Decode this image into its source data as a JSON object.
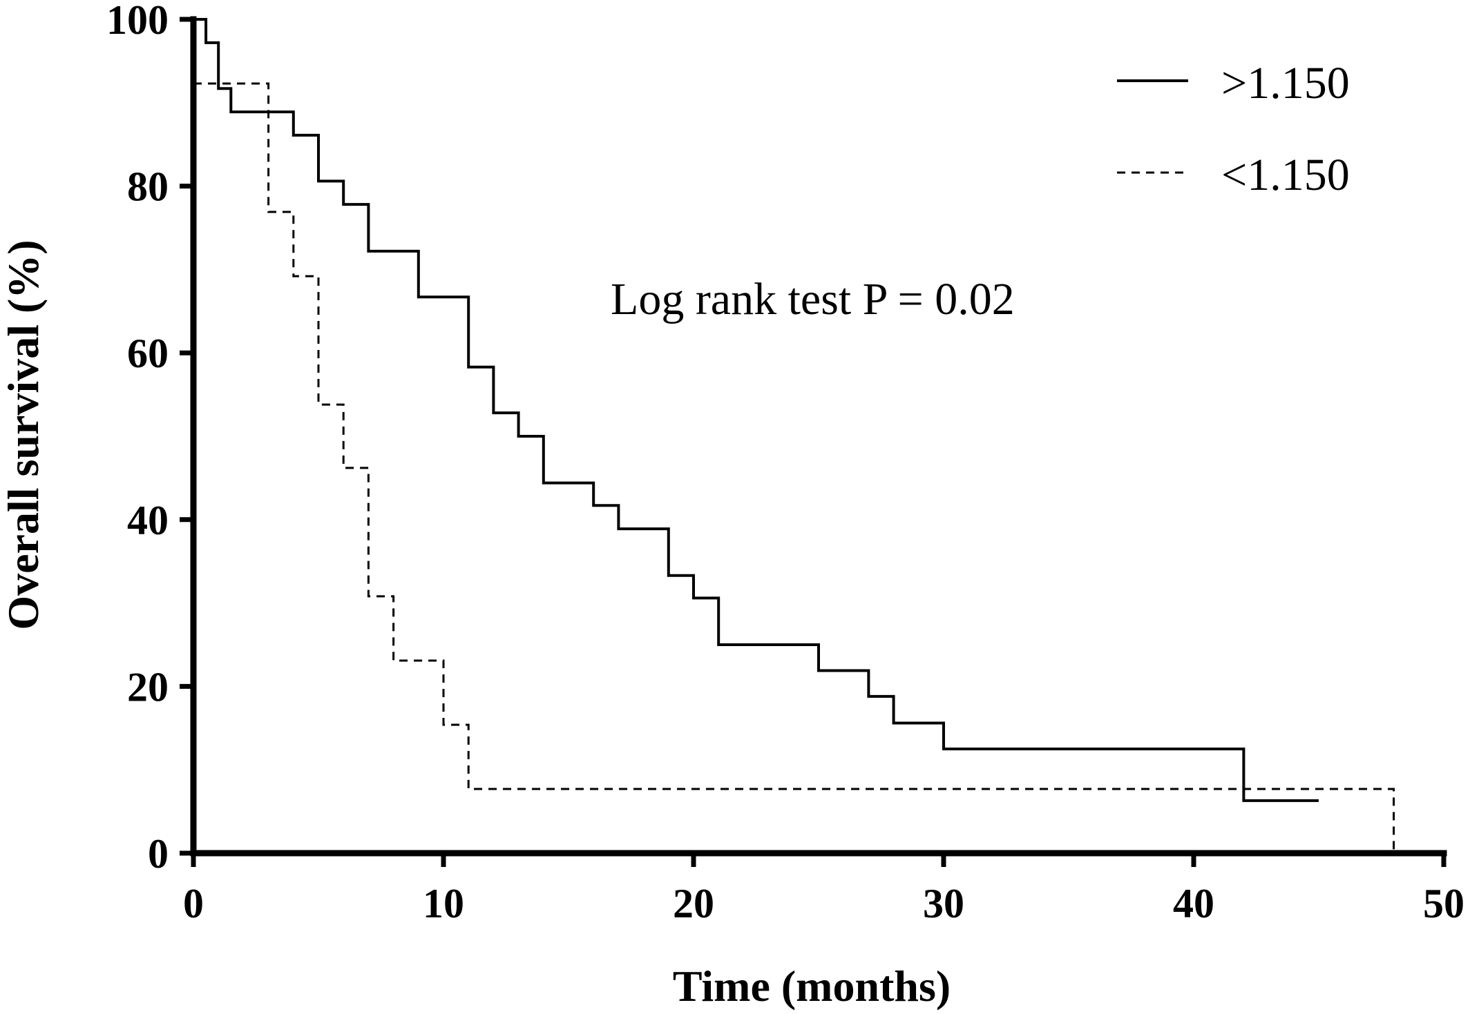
{
  "chart_data": {
    "type": "line",
    "subtype": "kaplan-meier-step",
    "title": "",
    "xlabel": "Time (months)",
    "ylabel": "Overall survival (%)",
    "xlim": [
      0,
      50
    ],
    "ylim": [
      0,
      100
    ],
    "xticks": [
      0,
      10,
      20,
      30,
      40,
      50
    ],
    "yticks": [
      0,
      20,
      40,
      60,
      80,
      100
    ],
    "grid": false,
    "legend_position": "top-right",
    "annotation": "Log rank test P = 0.02",
    "colors": {
      "line": "#000000",
      "axis": "#000000"
    },
    "series": [
      {
        "name": ">1.150",
        "style": "solid",
        "x": [
          0,
          0.5,
          1,
          1.5,
          4,
          5,
          6,
          7,
          9,
          11,
          12,
          13,
          14,
          16,
          17,
          19,
          20,
          21,
          25,
          27,
          28,
          30,
          42,
          45
        ],
        "y": [
          100,
          97.2,
          91.7,
          88.9,
          86.1,
          80.6,
          77.8,
          72.2,
          66.7,
          58.3,
          52.8,
          50.0,
          44.4,
          41.7,
          38.9,
          33.3,
          30.6,
          25.0,
          21.9,
          18.8,
          15.6,
          12.5,
          6.3,
          6.3
        ]
      },
      {
        "name": "<1.150",
        "style": "dashed",
        "x": [
          0,
          3,
          4,
          5,
          6,
          7,
          8,
          10,
          11,
          48
        ],
        "y": [
          92.3,
          76.9,
          69.2,
          53.8,
          46.2,
          30.8,
          23.1,
          15.4,
          7.7,
          0
        ]
      }
    ]
  }
}
